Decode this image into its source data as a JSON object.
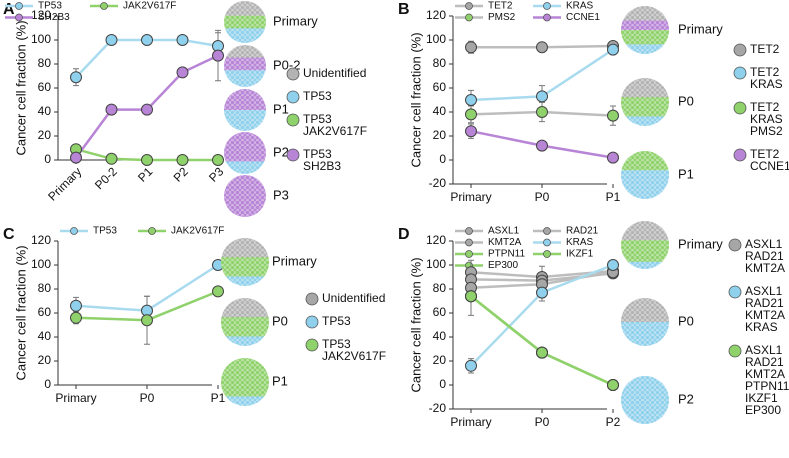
{
  "chart_data": [
    {
      "type": "line",
      "title": "A",
      "y_label": "Cancer cell fraction (%)",
      "categories": [
        "Primary",
        "P0-2",
        "P1",
        "P2",
        "P3"
      ],
      "ylim": [
        0,
        120
      ],
      "yticks": [
        0,
        20,
        40,
        60,
        80,
        100,
        120
      ],
      "series": [
        {
          "name": "TP53",
          "color": "#a9dbef",
          "marker_color": "#8fd0ec",
          "values": [
            69,
            100,
            100,
            100,
            95
          ],
          "errors": [
            7,
            null,
            null,
            null,
            11
          ]
        },
        {
          "name": "JAK2V617F",
          "color": "#8fd16b",
          "marker_color": "#8fd16b",
          "values": [
            9,
            1,
            0,
            0,
            0
          ],
          "errors": [
            null,
            null,
            null,
            null,
            null
          ]
        },
        {
          "name": "SH2B3",
          "color": "#b784d6",
          "marker_color": "#b784d6",
          "values": [
            2,
            42,
            42,
            73,
            87
          ],
          "errors": [
            null,
            null,
            null,
            null,
            21
          ]
        }
      ],
      "samples": [
        "Primary",
        "P0-2",
        "P1",
        "P2",
        "P3"
      ],
      "clones": [
        {
          "label": [
            "Unidentified"
          ],
          "color": "#b3b3b3"
        },
        {
          "label": [
            "TP53"
          ],
          "color": "#8fd0ec"
        },
        {
          "label": [
            "TP53",
            "JAK2V617F"
          ],
          "color": "#8fd16b"
        },
        {
          "label": [
            "TP53",
            "SH2B3"
          ],
          "color": "#b784d6"
        }
      ]
    },
    {
      "type": "line",
      "title": "B",
      "y_label": "Cancer cell fraction (%)",
      "categories": [
        "Primary",
        "P0",
        "P1"
      ],
      "ylim": [
        -20,
        120
      ],
      "yticks": [
        -20,
        0,
        20,
        40,
        60,
        80,
        100,
        120
      ],
      "series": [
        {
          "name": "TET2",
          "color": "#bdbdbd",
          "marker_color": "#a6a6a6",
          "values": [
            94,
            94,
            95
          ],
          "errors": [
            5,
            4,
            3
          ]
        },
        {
          "name": "KRAS",
          "color": "#a9dbef",
          "marker_color": "#8fd0ec",
          "values": [
            50,
            53,
            92
          ],
          "errors": [
            8,
            9,
            3
          ]
        },
        {
          "name": "PMS2",
          "color": "#bdbdbd",
          "marker_color": "#8fd16b",
          "values": [
            38,
            40,
            37
          ],
          "errors": [
            7,
            8,
            8
          ]
        },
        {
          "name": "CCNE1",
          "color": "#b784d6",
          "marker_color": "#b784d6",
          "values": [
            24,
            12,
            2
          ],
          "errors": [
            6,
            null,
            null
          ]
        }
      ],
      "samples": [
        "Primary",
        "P0",
        "P1"
      ],
      "clones": [
        {
          "label": [
            "TET2"
          ],
          "color": "#a6a6a6"
        },
        {
          "label": [
            "TET2",
            "KRAS"
          ],
          "color": "#8fd0ec"
        },
        {
          "label": [
            "TET2",
            "KRAS",
            "PMS2"
          ],
          "color": "#8fd16b"
        },
        {
          "label": [
            "TET2",
            "CCNE1"
          ],
          "color": "#b784d6"
        }
      ]
    },
    {
      "type": "line",
      "title": "C",
      "y_label": "Cancer cell fraction (%)",
      "categories": [
        "Primary",
        "P0",
        "P1"
      ],
      "ylim": [
        0,
        120
      ],
      "yticks": [
        0,
        20,
        40,
        60,
        80,
        100,
        120
      ],
      "series": [
        {
          "name": "TP53",
          "color": "#a9dbef",
          "marker_color": "#8fd0ec",
          "values": [
            66,
            62,
            100
          ],
          "errors": [
            7,
            12,
            null
          ]
        },
        {
          "name": "JAK2V617F",
          "color": "#8fd16b",
          "marker_color": "#8fd16b",
          "values": [
            56,
            54,
            78
          ],
          "errors": [
            5,
            20,
            null
          ]
        }
      ],
      "samples": [
        "Primary",
        "P0",
        "P1"
      ],
      "clones": [
        {
          "label": [
            "Unidentified"
          ],
          "color": "#a6a6a6"
        },
        {
          "label": [
            "TP53"
          ],
          "color": "#8fd0ec"
        },
        {
          "label": [
            "TP53",
            "JAK2V617F"
          ],
          "color": "#8fd16b"
        }
      ]
    },
    {
      "type": "line",
      "title": "D",
      "y_label": "Cancer cell fraction (%)",
      "categories": [
        "Primary",
        "P0",
        "P2"
      ],
      "ylim": [
        -20,
        120
      ],
      "yticks": [
        -20,
        0,
        20,
        40,
        60,
        80,
        100,
        120
      ],
      "series": [
        {
          "name": "ASXL1",
          "color": "#bdbdbd",
          "marker_color": "#a6a6a6",
          "values": [
            94,
            90,
            95
          ],
          "errors": [
            10,
            9,
            null
          ]
        },
        {
          "name": "RAD21",
          "color": "#bdbdbd",
          "marker_color": "#a6a6a6",
          "values": [
            88,
            87,
            93
          ],
          "errors": [
            null,
            null,
            null
          ]
        },
        {
          "name": "KMT2A",
          "color": "#bdbdbd",
          "marker_color": "#a6a6a6",
          "values": [
            81,
            84,
            94
          ],
          "errors": [
            null,
            null,
            null
          ]
        },
        {
          "name": "KRAS",
          "color": "#a9dbef",
          "marker_color": "#8fd0ec",
          "values": [
            16,
            77,
            100
          ],
          "errors": [
            6,
            7,
            null
          ]
        },
        {
          "name": "PTPN11",
          "color": "#8fd16b",
          "marker_color": "#8fd16b",
          "values": [
            74,
            27,
            0
          ],
          "errors": [
            16,
            null,
            null
          ]
        },
        {
          "name": "IKZF1",
          "color": "#8fd16b",
          "marker_color": "#8fd16b",
          "values": [
            74,
            27,
            0
          ],
          "errors": [
            null,
            null,
            null
          ]
        },
        {
          "name": "EP300",
          "color": "#8fd16b",
          "marker_color": "#8fd16b",
          "values": [
            74,
            27,
            0
          ],
          "errors": [
            null,
            null,
            null
          ]
        }
      ],
      "samples": [
        "Primary",
        "P0",
        "P2"
      ],
      "clones": [
        {
          "label": [
            "ASXL1",
            "RAD21",
            "KMT2A"
          ],
          "color": "#a6a6a6"
        },
        {
          "label": [
            "ASXL1",
            "RAD21",
            "KMT2A",
            "KRAS"
          ],
          "color": "#8fd0ec"
        },
        {
          "label": [
            "ASXL1",
            "RAD21",
            "KMT2A",
            "PTPN11",
            "IKZF1",
            "EP300"
          ],
          "color": "#8fd16b"
        }
      ]
    }
  ]
}
